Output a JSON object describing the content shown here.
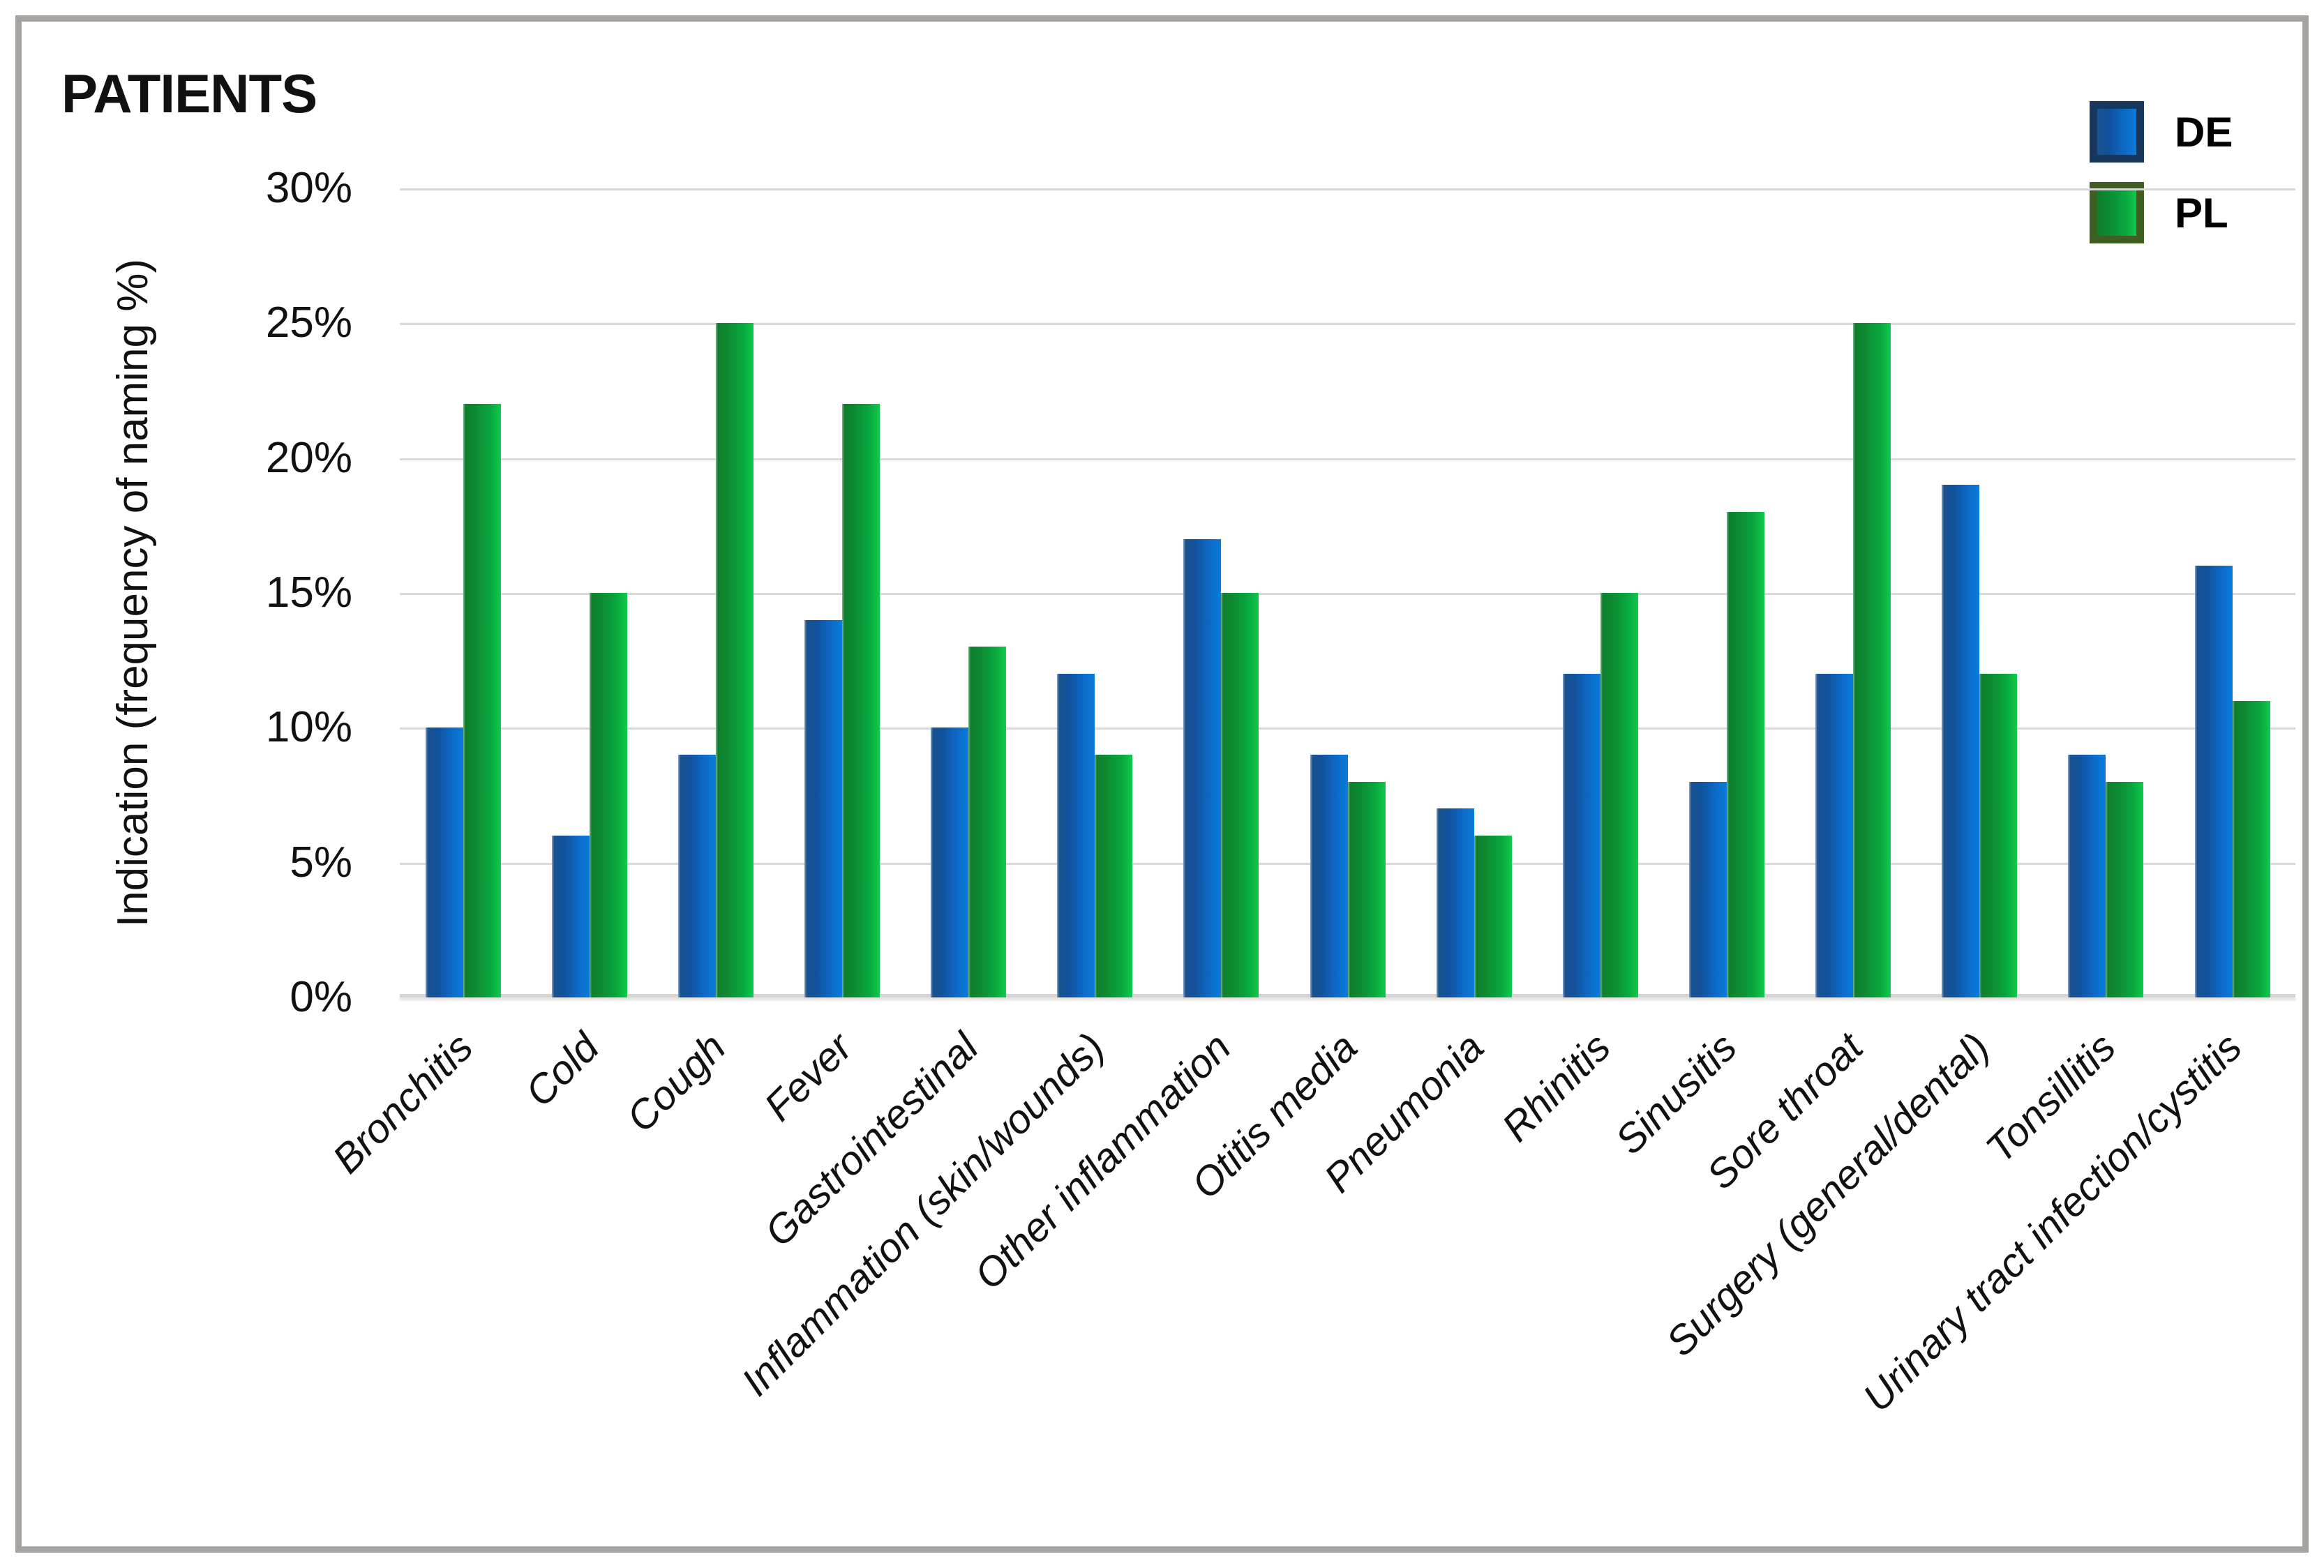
{
  "title": "PATIENTS",
  "y_axis": {
    "label": "Indication (frequency of naming %)",
    "ticks": [
      "30%",
      "25%",
      "20%",
      "15%",
      "10%",
      "5%",
      "0%"
    ]
  },
  "legend": {
    "items": [
      {
        "label": "DE",
        "color": "#1268c3",
        "border_color": "#17375d"
      },
      {
        "label": "PL",
        "color": "#0ba23e",
        "border_color": "#3f5e21"
      }
    ]
  },
  "colors": {
    "frame_border": "#a7a3a0",
    "gridline": "#d9d9d9",
    "de_bar": "#1268c3",
    "pl_bar": "#0ba23e"
  },
  "chart_data": {
    "type": "bar",
    "title": "PATIENTS",
    "xlabel": "",
    "ylabel": "Indication (frequency of naming %)",
    "ylim": [
      0,
      30
    ],
    "y_tick_step": 5,
    "grid": true,
    "legend_position": "top-right",
    "categories": [
      "Bronchitis",
      "Cold",
      "Cough",
      "Fever",
      "Gastrointestinal",
      "Inflammation (skin/wounds)",
      "Other inflammation",
      "Otitis media",
      "Pneumonia",
      "Rhinitis",
      "Sinusitis",
      "Sore throat",
      "Surgery (general/dental)",
      "Tonsillitis",
      "Urinary tract infection/cystitis"
    ],
    "series": [
      {
        "name": "DE",
        "color": "#1268c3",
        "values": [
          10,
          6,
          9,
          14,
          10,
          12,
          17,
          9,
          7,
          12,
          8,
          12,
          19,
          9,
          16
        ]
      },
      {
        "name": "PL",
        "color": "#0ba23e",
        "values": [
          22,
          15,
          25,
          22,
          13,
          9,
          15,
          8,
          6,
          15,
          18,
          25,
          12,
          8,
          11
        ]
      }
    ]
  }
}
